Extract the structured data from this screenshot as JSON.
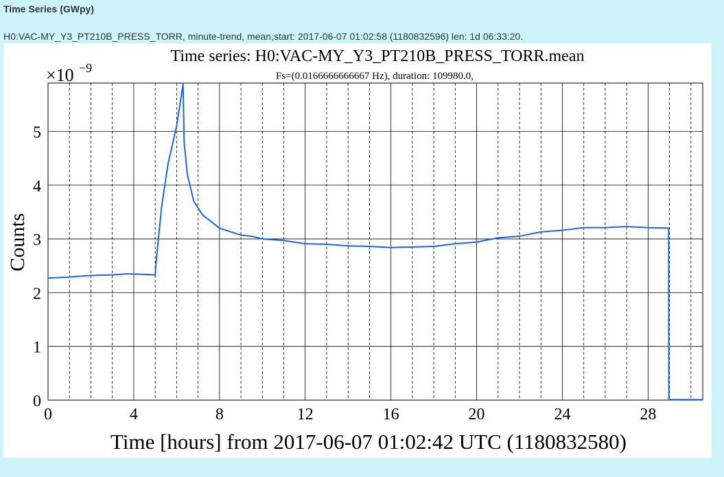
{
  "header": {
    "title": "Time Series (GWpy)",
    "info": "H0:VAC-MY_Y3_PT210B_PRESS_TORR, minute-trend, mean,start: 2017-06-07 01:02:58 (1180832596) len: 1d 06:33:20."
  },
  "chart_data": {
    "type": "line",
    "title": "Time series:  H0:VAC-MY_Y3_PT210B_PRESS_TORR.mean",
    "subtitle": "Fs=(0.0166666666667 Hz), duration: 109980.0,",
    "x_label": "Time [hours] from 2017-06-07 01:02:42 UTC (1180832580)",
    "y_label": "Counts",
    "y_offset_base": "×10",
    "y_offset_exponent": "−9",
    "x": [
      0,
      1,
      2,
      3,
      3.7,
      4.5,
      5.0,
      5.05,
      5.3,
      5.6,
      6.0,
      6.3,
      6.35,
      6.5,
      6.8,
      7.2,
      8,
      9,
      9.5,
      10,
      11,
      12,
      13,
      14,
      15,
      16,
      17,
      18,
      19,
      20,
      21,
      22,
      23,
      24,
      25,
      26,
      27,
      28,
      28.96,
      28.97,
      30.55
    ],
    "series": [
      {
        "name": "H0:VAC-MY_Y3_PT210B_PRESS_TORR.mean",
        "color": "#1a66e8",
        "values": [
          2.27,
          2.29,
          2.32,
          2.33,
          2.35,
          2.34,
          2.33,
          2.6,
          3.6,
          4.4,
          5.1,
          5.88,
          4.8,
          4.2,
          3.7,
          3.45,
          3.2,
          3.07,
          3.05,
          3.0,
          2.97,
          2.91,
          2.9,
          2.87,
          2.86,
          2.84,
          2.85,
          2.86,
          2.91,
          2.94,
          3.02,
          3.05,
          3.13,
          3.16,
          3.21,
          3.21,
          3.23,
          3.21,
          3.2,
          0.01,
          0.01
        ]
      }
    ],
    "xlim": [
      0,
      30.55
    ],
    "ylim": [
      0,
      5.9
    ],
    "xticks": [
      0,
      4,
      8,
      12,
      16,
      20,
      24,
      28
    ],
    "xminorticks": [
      1,
      2,
      3,
      5,
      6,
      7,
      9,
      10,
      11,
      13,
      14,
      15,
      17,
      18,
      19,
      21,
      22,
      23,
      25,
      26,
      27,
      29,
      30
    ],
    "yticks": [
      0,
      1,
      2,
      3,
      4,
      5
    ],
    "grid": true
  }
}
